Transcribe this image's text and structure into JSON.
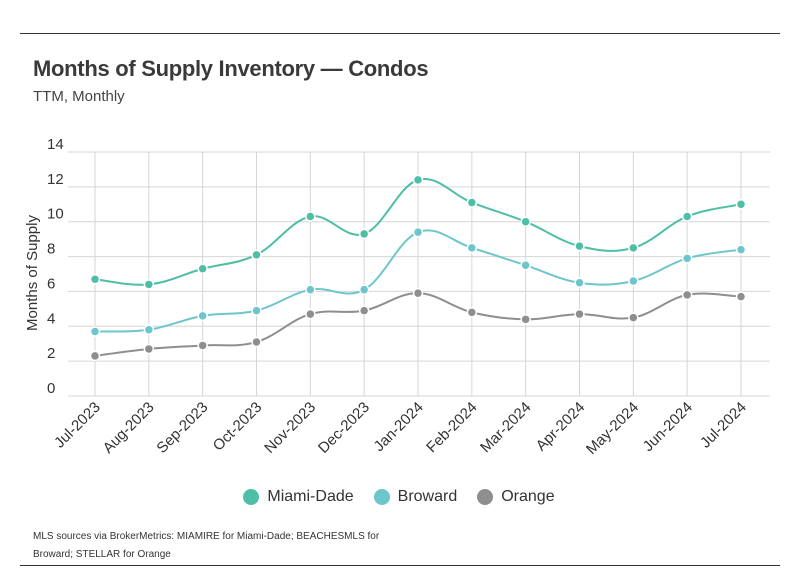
{
  "header": {
    "title": "Months of Supply Inventory — Condos",
    "subtitle": "TTM, Monthly"
  },
  "source_note": "MLS sources via BrokerMetrics: MIAMIRE for Miami-Dade; BEACHESMLS for Broward; STELLAR for Orange",
  "chart_data": {
    "type": "line",
    "title": "Months of Supply Inventory — Condos",
    "subtitle": "TTM, Monthly",
    "xlabel": "",
    "ylabel": "Months of Supply",
    "ylim": [
      0,
      14
    ],
    "yticks": [
      0,
      2,
      4,
      6,
      8,
      10,
      12,
      14
    ],
    "grid": true,
    "legend_position": "bottom",
    "categories": [
      "Jul-2023",
      "Aug-2023",
      "Sep-2023",
      "Oct-2023",
      "Nov-2023",
      "Dec-2023",
      "Jan-2024",
      "Feb-2024",
      "Mar-2024",
      "Apr-2024",
      "May-2024",
      "Jun-2024",
      "Jul-2024"
    ],
    "series": [
      {
        "name": "Miami-Dade",
        "color": "#4dbfa6",
        "values": [
          6.7,
          6.4,
          7.3,
          8.1,
          10.3,
          9.3,
          12.4,
          11.1,
          10.0,
          8.6,
          8.5,
          10.3,
          11.0
        ]
      },
      {
        "name": "Broward",
        "color": "#6cc6cc",
        "values": [
          3.7,
          3.8,
          4.6,
          4.9,
          6.1,
          6.1,
          9.4,
          8.5,
          7.5,
          6.5,
          6.6,
          7.9,
          8.4
        ]
      },
      {
        "name": "Orange",
        "color": "#8e8e8e",
        "values": [
          2.3,
          2.7,
          2.9,
          3.1,
          4.7,
          4.9,
          5.9,
          4.8,
          4.4,
          4.7,
          4.5,
          5.8,
          5.7
        ]
      }
    ]
  }
}
